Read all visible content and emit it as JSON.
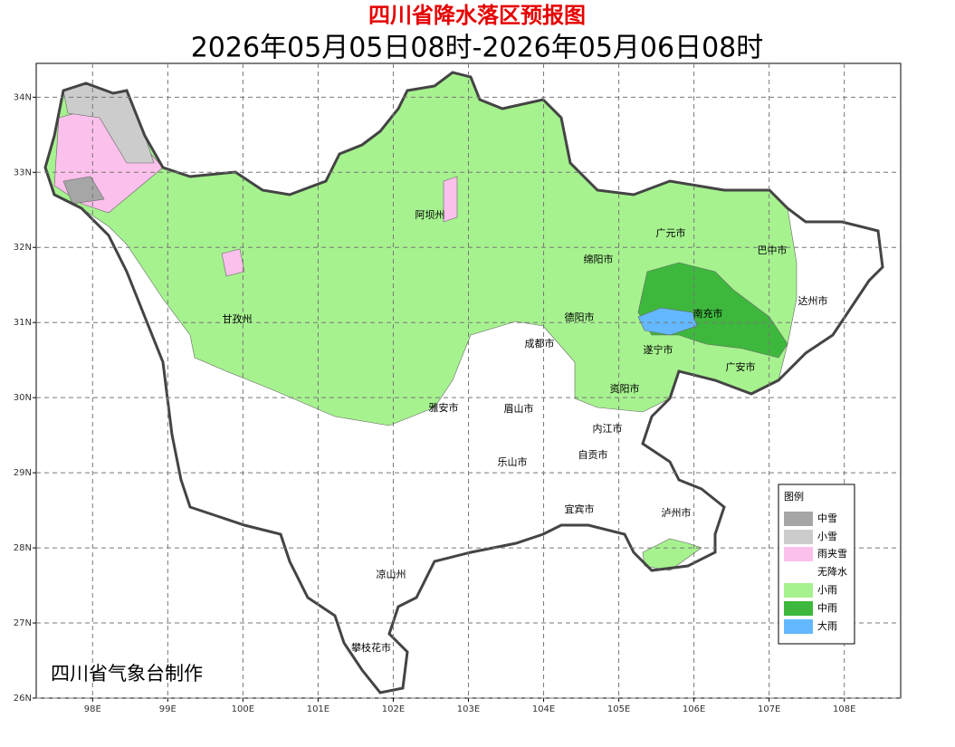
{
  "title": "四川省降水落区预报图",
  "subtitle": "2026年05月05日08时-2026年05月06日08时",
  "credit": "四川省气象台制作",
  "map": {
    "xlim": [
      97.25,
      108.75
    ],
    "ylim": [
      26,
      34.45
    ],
    "xticks": [
      {
        "value": 98,
        "label": "98E"
      },
      {
        "value": 99,
        "label": "99E"
      },
      {
        "value": 100,
        "label": "100E"
      },
      {
        "value": 101,
        "label": "101E"
      },
      {
        "value": 102,
        "label": "102E"
      },
      {
        "value": 103,
        "label": "103E"
      },
      {
        "value": 104,
        "label": "104E"
      },
      {
        "value": 105,
        "label": "105E"
      },
      {
        "value": 106,
        "label": "106E"
      },
      {
        "value": 107,
        "label": "107E"
      },
      {
        "value": 108,
        "label": "108E"
      }
    ],
    "yticks": [
      {
        "value": 26,
        "label": "26N"
      },
      {
        "value": 27,
        "label": "27N"
      },
      {
        "value": 28,
        "label": "28N"
      },
      {
        "value": 29,
        "label": "29N"
      },
      {
        "value": 30,
        "label": "30N"
      },
      {
        "value": 31,
        "label": "31N"
      },
      {
        "value": 32,
        "label": "32N"
      },
      {
        "value": 33,
        "label": "33N"
      },
      {
        "value": 34,
        "label": "34N"
      }
    ]
  },
  "cities": [
    "阿坝州",
    "广元市",
    "巴中市",
    "绵阳市",
    "达州市",
    "甘孜州",
    "德阳市",
    "南充市",
    "成都市",
    "遂宁市",
    "广安市",
    "资阳市",
    "雅安市",
    "眉山市",
    "内江市",
    "自贡市",
    "乐山市",
    "宜宾市",
    "泸州市",
    "凉山州",
    "攀枝花市"
  ],
  "legend": {
    "title": "图例",
    "items": [
      {
        "name": "中雪",
        "color": "#a6a6a6"
      },
      {
        "name": "小雪",
        "color": "#cccccc"
      },
      {
        "name": "雨夹雪",
        "color": "#fcc0ec"
      },
      {
        "name": "无降水",
        "color": "#ffffff"
      },
      {
        "name": "小雨",
        "color": "#a6f28f"
      },
      {
        "name": "中雨",
        "color": "#3db83d"
      },
      {
        "name": "大雨",
        "color": "#63b8ff"
      }
    ]
  }
}
